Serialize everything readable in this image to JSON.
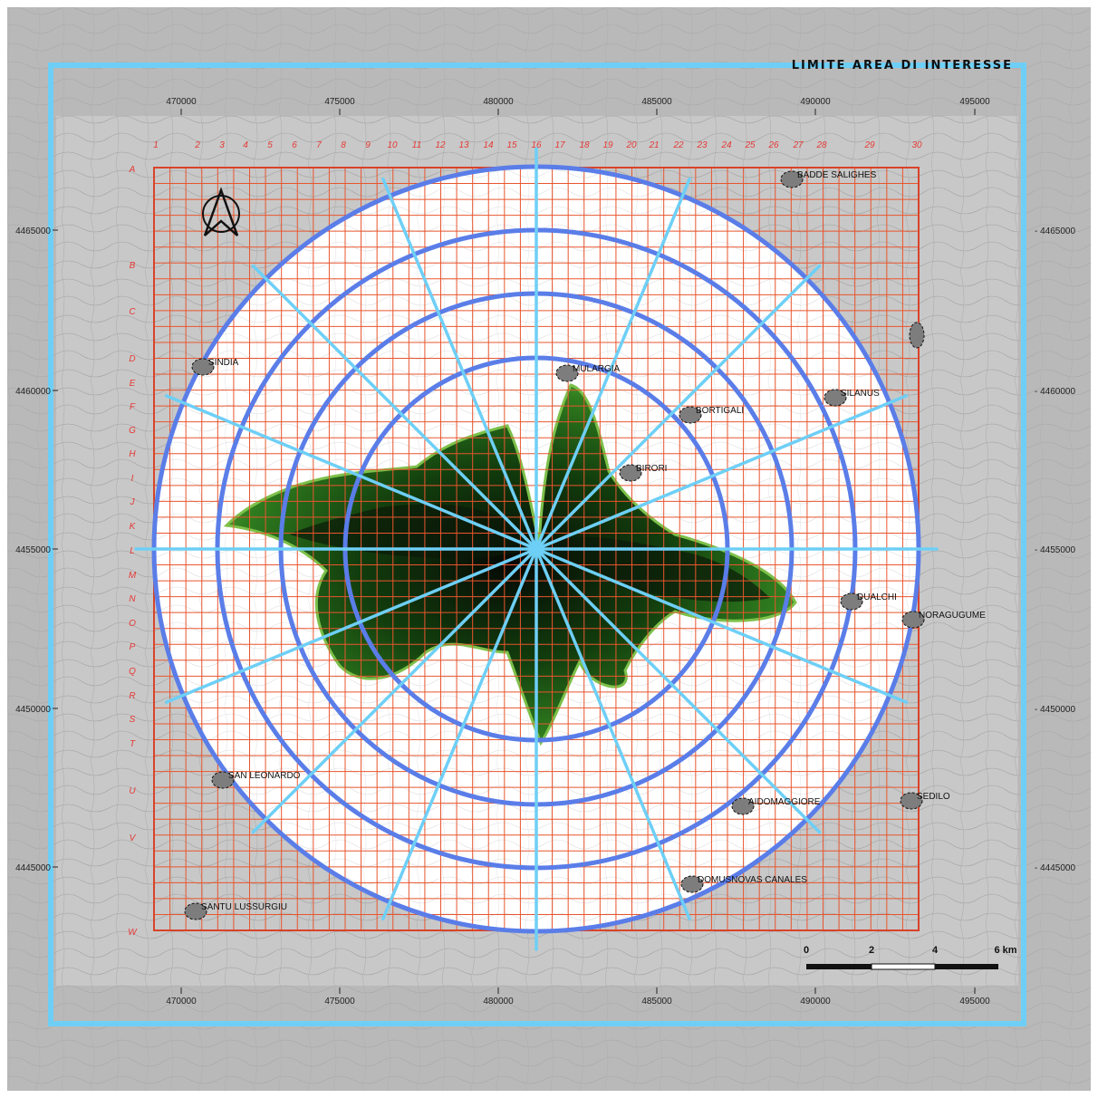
{
  "map": {
    "title": "LIMITE AREA DI INTERESSE",
    "x_ticks": [
      "470000",
      "475000",
      "480000",
      "485000",
      "490000",
      "495000"
    ],
    "y_ticks": [
      "4465000",
      "4460000",
      "4455000",
      "4450000",
      "4445000"
    ],
    "grid_columns": [
      "1",
      "2",
      "3",
      "4",
      "5",
      "6",
      "7",
      "8",
      "9",
      "10",
      "11",
      "12",
      "13",
      "14",
      "15",
      "16",
      "17",
      "18",
      "19",
      "20",
      "21",
      "22",
      "23",
      "24",
      "25",
      "26",
      "27",
      "28",
      "29",
      "30"
    ],
    "grid_rows": [
      "A",
      "B",
      "C",
      "D",
      "E",
      "F",
      "G",
      "H",
      "I",
      "J",
      "K",
      "L",
      "M",
      "N",
      "O",
      "P",
      "Q",
      "R",
      "S",
      "T",
      "U",
      "V",
      "W"
    ],
    "towns": [
      "BADDE SALIGHES",
      "SINDIA",
      "MULARGIA",
      "SILANUS",
      "BORTIGALI",
      "BIRORI",
      "DUALCHI",
      "NORAGUGUME",
      "SAN LEONARDO",
      "AIDOMAGGIORE",
      "SEDILO",
      "DOMUSNOVAS CANALES",
      "SANTU LUSSURGIU"
    ],
    "scale": {
      "labels": [
        "0",
        "2",
        "4",
        "6 km"
      ]
    },
    "colors": {
      "frame": "#6ecff6",
      "grid": "#e8562f",
      "grid_labels": "#e53935",
      "rings": "#5a7de8",
      "radials": "#6ecff6",
      "background": "#b9b9b9",
      "terrain_green": "#2f7d1f"
    },
    "icons": [
      "north-arrow-icon"
    ]
  }
}
